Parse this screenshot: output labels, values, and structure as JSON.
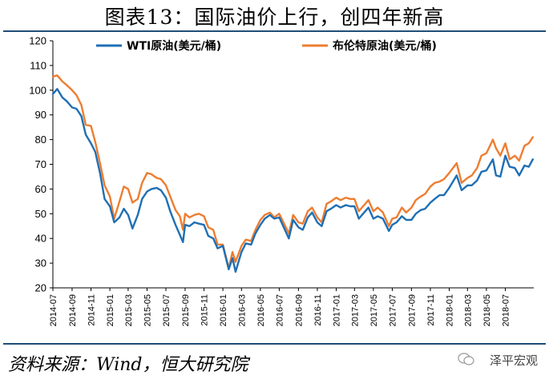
{
  "title": "图表13：国际油价上行，创四年新高",
  "source": "资料来源：Wind，恒大研究院",
  "watermark": "泽平宏观",
  "chart_data": {
    "type": "line",
    "title": "图表13：国际油价上行，创四年新高",
    "xlabel": "",
    "ylabel": "",
    "ylim": [
      20,
      120
    ],
    "yticks": [
      20,
      30,
      40,
      50,
      60,
      70,
      80,
      90,
      100,
      110,
      120
    ],
    "x_range": [
      "2014-07",
      "2018-10"
    ],
    "xticks": [
      "2014-07",
      "2014-09",
      "2014-11",
      "2015-01",
      "2015-03",
      "2015-05",
      "2015-07",
      "2015-09",
      "2015-11",
      "2016-01",
      "2016-03",
      "2016-05",
      "2016-07",
      "2016-09",
      "2016-11",
      "2017-01",
      "2017-03",
      "2017-05",
      "2017-07",
      "2017-09",
      "2017-11",
      "2018-01",
      "2018-03",
      "2018-05",
      "2018-07"
    ],
    "grid": false,
    "legend_position": "top",
    "series": [
      {
        "name": "WTI原油(美元/桶)",
        "color": "#1f6fb4",
        "points": [
          [
            "2014-07-01",
            98.5
          ],
          [
            "2014-07-15",
            100.5
          ],
          [
            "2014-08-01",
            97.0
          ],
          [
            "2014-08-15",
            95.5
          ],
          [
            "2014-09-01",
            93.0
          ],
          [
            "2014-09-15",
            92.5
          ],
          [
            "2014-10-01",
            89.5
          ],
          [
            "2014-10-15",
            82.0
          ],
          [
            "2014-11-01",
            78.5
          ],
          [
            "2014-11-15",
            75.0
          ],
          [
            "2014-12-01",
            66.0
          ],
          [
            "2014-12-15",
            56.0
          ],
          [
            "2015-01-01",
            53.0
          ],
          [
            "2015-01-15",
            46.5
          ],
          [
            "2015-02-01",
            48.5
          ],
          [
            "2015-02-15",
            52.0
          ],
          [
            "2015-03-01",
            49.5
          ],
          [
            "2015-03-15",
            44.0
          ],
          [
            "2015-04-01",
            49.5
          ],
          [
            "2015-04-15",
            56.0
          ],
          [
            "2015-05-01",
            59.0
          ],
          [
            "2015-05-15",
            60.0
          ],
          [
            "2015-06-01",
            60.5
          ],
          [
            "2015-06-15",
            59.5
          ],
          [
            "2015-07-01",
            56.5
          ],
          [
            "2015-07-15",
            51.0
          ],
          [
            "2015-08-01",
            45.5
          ],
          [
            "2015-08-15",
            41.5
          ],
          [
            "2015-08-25",
            38.5
          ],
          [
            "2015-09-01",
            45.5
          ],
          [
            "2015-09-15",
            45.0
          ],
          [
            "2015-10-01",
            46.5
          ],
          [
            "2015-10-15",
            46.0
          ],
          [
            "2015-11-01",
            45.5
          ],
          [
            "2015-11-15",
            41.0
          ],
          [
            "2015-12-01",
            40.0
          ],
          [
            "2015-12-15",
            36.0
          ],
          [
            "2016-01-01",
            37.0
          ],
          [
            "2016-01-20",
            27.5
          ],
          [
            "2016-02-01",
            32.0
          ],
          [
            "2016-02-11",
            26.5
          ],
          [
            "2016-03-01",
            34.5
          ],
          [
            "2016-03-15",
            38.0
          ],
          [
            "2016-04-01",
            37.5
          ],
          [
            "2016-04-15",
            42.0
          ],
          [
            "2016-05-01",
            45.5
          ],
          [
            "2016-05-15",
            48.0
          ],
          [
            "2016-06-01",
            49.5
          ],
          [
            "2016-06-15",
            48.0
          ],
          [
            "2016-07-01",
            48.5
          ],
          [
            "2016-08-01",
            40.0
          ],
          [
            "2016-08-15",
            47.5
          ],
          [
            "2016-09-01",
            44.5
          ],
          [
            "2016-09-15",
            43.5
          ],
          [
            "2016-10-01",
            48.5
          ],
          [
            "2016-10-15",
            50.5
          ],
          [
            "2016-11-01",
            46.5
          ],
          [
            "2016-11-15",
            45.0
          ],
          [
            "2016-12-01",
            51.0
          ],
          [
            "2016-12-15",
            52.0
          ],
          [
            "2017-01-01",
            53.5
          ],
          [
            "2017-01-15",
            52.5
          ],
          [
            "2017-02-01",
            53.5
          ],
          [
            "2017-02-15",
            53.0
          ],
          [
            "2017-03-01",
            53.0
          ],
          [
            "2017-03-15",
            48.0
          ],
          [
            "2017-04-01",
            50.5
          ],
          [
            "2017-04-15",
            52.5
          ],
          [
            "2017-05-01",
            48.0
          ],
          [
            "2017-05-15",
            49.0
          ],
          [
            "2017-06-01",
            48.0
          ],
          [
            "2017-06-20",
            43.0
          ],
          [
            "2017-07-01",
            45.5
          ],
          [
            "2017-07-15",
            46.5
          ],
          [
            "2017-08-01",
            49.0
          ],
          [
            "2017-08-15",
            47.5
          ],
          [
            "2017-09-01",
            47.5
          ],
          [
            "2017-09-15",
            50.0
          ],
          [
            "2017-10-01",
            51.5
          ],
          [
            "2017-10-15",
            52.0
          ],
          [
            "2017-11-01",
            54.5
          ],
          [
            "2017-11-15",
            56.0
          ],
          [
            "2017-12-01",
            57.5
          ],
          [
            "2017-12-15",
            57.5
          ],
          [
            "2018-01-01",
            60.5
          ],
          [
            "2018-01-25",
            65.5
          ],
          [
            "2018-02-10",
            59.5
          ],
          [
            "2018-03-01",
            61.5
          ],
          [
            "2018-03-15",
            61.5
          ],
          [
            "2018-04-01",
            63.5
          ],
          [
            "2018-04-15",
            67.0
          ],
          [
            "2018-05-01",
            67.5
          ],
          [
            "2018-05-22",
            72.0
          ],
          [
            "2018-06-01",
            65.5
          ],
          [
            "2018-06-15",
            65.0
          ],
          [
            "2018-07-01",
            73.5
          ],
          [
            "2018-07-15",
            69.0
          ],
          [
            "2018-08-01",
            68.5
          ],
          [
            "2018-08-15",
            65.5
          ],
          [
            "2018-09-01",
            69.5
          ],
          [
            "2018-09-15",
            69.0
          ],
          [
            "2018-09-28",
            72.0
          ]
        ]
      },
      {
        "name": "布伦特原油(美元/桶)",
        "color": "#ed7d31",
        "points": [
          [
            "2014-07-01",
            105.5
          ],
          [
            "2014-07-15",
            106.0
          ],
          [
            "2014-08-01",
            103.5
          ],
          [
            "2014-08-15",
            102.0
          ],
          [
            "2014-09-01",
            100.0
          ],
          [
            "2014-09-15",
            98.0
          ],
          [
            "2014-10-01",
            94.0
          ],
          [
            "2014-10-15",
            86.0
          ],
          [
            "2014-11-01",
            85.5
          ],
          [
            "2014-11-15",
            79.0
          ],
          [
            "2014-12-01",
            70.0
          ],
          [
            "2014-12-15",
            61.5
          ],
          [
            "2015-01-01",
            57.0
          ],
          [
            "2015-01-15",
            48.0
          ],
          [
            "2015-02-01",
            55.0
          ],
          [
            "2015-02-15",
            61.0
          ],
          [
            "2015-03-01",
            60.0
          ],
          [
            "2015-03-15",
            54.5
          ],
          [
            "2015-04-01",
            56.0
          ],
          [
            "2015-04-15",
            62.5
          ],
          [
            "2015-05-01",
            66.5
          ],
          [
            "2015-05-15",
            66.0
          ],
          [
            "2015-06-01",
            64.5
          ],
          [
            "2015-06-15",
            64.0
          ],
          [
            "2015-07-01",
            61.5
          ],
          [
            "2015-07-15",
            57.0
          ],
          [
            "2015-08-01",
            51.5
          ],
          [
            "2015-08-15",
            49.0
          ],
          [
            "2015-08-25",
            43.5
          ],
          [
            "2015-09-01",
            50.0
          ],
          [
            "2015-09-15",
            48.5
          ],
          [
            "2015-10-01",
            49.5
          ],
          [
            "2015-10-15",
            50.0
          ],
          [
            "2015-11-01",
            49.0
          ],
          [
            "2015-11-15",
            44.5
          ],
          [
            "2015-12-01",
            43.5
          ],
          [
            "2015-12-15",
            37.5
          ],
          [
            "2016-01-01",
            37.5
          ],
          [
            "2016-01-20",
            28.0
          ],
          [
            "2016-02-01",
            34.5
          ],
          [
            "2016-02-11",
            30.5
          ],
          [
            "2016-03-01",
            37.0
          ],
          [
            "2016-03-15",
            39.5
          ],
          [
            "2016-04-01",
            39.0
          ],
          [
            "2016-04-15",
            43.5
          ],
          [
            "2016-05-01",
            47.5
          ],
          [
            "2016-05-15",
            49.5
          ],
          [
            "2016-06-01",
            50.5
          ],
          [
            "2016-06-15",
            48.5
          ],
          [
            "2016-07-01",
            50.0
          ],
          [
            "2016-08-01",
            42.0
          ],
          [
            "2016-08-15",
            49.5
          ],
          [
            "2016-09-01",
            46.5
          ],
          [
            "2016-09-15",
            46.0
          ],
          [
            "2016-10-01",
            51.0
          ],
          [
            "2016-10-15",
            52.5
          ],
          [
            "2016-11-01",
            48.5
          ],
          [
            "2016-11-15",
            46.5
          ],
          [
            "2016-12-01",
            54.0
          ],
          [
            "2016-12-15",
            55.0
          ],
          [
            "2017-01-01",
            56.5
          ],
          [
            "2017-01-15",
            55.5
          ],
          [
            "2017-02-01",
            56.5
          ],
          [
            "2017-02-15",
            56.0
          ],
          [
            "2017-03-01",
            56.0
          ],
          [
            "2017-03-15",
            51.0
          ],
          [
            "2017-04-01",
            53.5
          ],
          [
            "2017-04-15",
            55.5
          ],
          [
            "2017-05-01",
            51.0
          ],
          [
            "2017-05-15",
            52.5
          ],
          [
            "2017-06-01",
            50.5
          ],
          [
            "2017-06-20",
            45.0
          ],
          [
            "2017-07-01",
            48.0
          ],
          [
            "2017-07-15",
            48.5
          ],
          [
            "2017-08-01",
            52.5
          ],
          [
            "2017-08-15",
            50.5
          ],
          [
            "2017-09-01",
            52.5
          ],
          [
            "2017-09-15",
            55.5
          ],
          [
            "2017-10-01",
            57.0
          ],
          [
            "2017-10-15",
            58.0
          ],
          [
            "2017-11-01",
            61.0
          ],
          [
            "2017-11-15",
            62.5
          ],
          [
            "2017-12-01",
            63.0
          ],
          [
            "2017-12-15",
            64.0
          ],
          [
            "2018-01-01",
            66.5
          ],
          [
            "2018-01-25",
            70.5
          ],
          [
            "2018-02-10",
            62.5
          ],
          [
            "2018-03-01",
            64.5
          ],
          [
            "2018-03-15",
            65.5
          ],
          [
            "2018-04-01",
            68.5
          ],
          [
            "2018-04-15",
            73.5
          ],
          [
            "2018-05-01",
            74.5
          ],
          [
            "2018-05-22",
            80.0
          ],
          [
            "2018-06-01",
            76.5
          ],
          [
            "2018-06-15",
            73.5
          ],
          [
            "2018-07-01",
            78.5
          ],
          [
            "2018-07-15",
            72.0
          ],
          [
            "2018-08-01",
            73.5
          ],
          [
            "2018-08-15",
            71.5
          ],
          [
            "2018-09-01",
            77.5
          ],
          [
            "2018-09-15",
            78.5
          ],
          [
            "2018-09-28",
            81.0
          ]
        ]
      }
    ]
  }
}
